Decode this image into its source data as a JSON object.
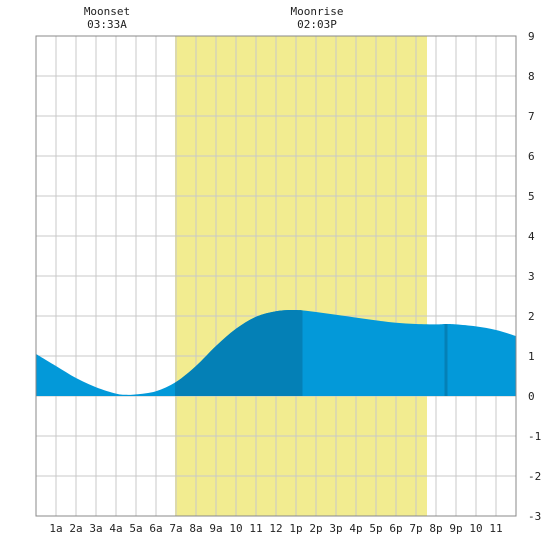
{
  "chart_data": {
    "type": "area",
    "title": "",
    "xlabel": "",
    "ylabel": "",
    "x_tick_labels": [
      "1a",
      "2a",
      "3a",
      "4a",
      "5a",
      "6a",
      "7a",
      "8a",
      "9a",
      "10",
      "11",
      "12",
      "1p",
      "2p",
      "3p",
      "4p",
      "5p",
      "6p",
      "7p",
      "8p",
      "9p",
      "10",
      "11"
    ],
    "y_tick_labels": [
      "-3",
      "-2",
      "-1",
      "0",
      "1",
      "2",
      "3",
      "4",
      "5",
      "6",
      "7",
      "8",
      "9"
    ],
    "xlim": [
      0,
      24
    ],
    "ylim": [
      -3,
      9
    ],
    "grid": true,
    "daylight": {
      "start_hour": 6.95,
      "end_hour": 19.55,
      "color": "#f2ec90"
    },
    "moon_events": [
      {
        "name": "Moonset",
        "time": "03:33A",
        "hour": 3.55
      },
      {
        "name": "Moonrise",
        "time": "02:03P",
        "hour": 14.05
      }
    ],
    "series": [
      {
        "x": [
          0,
          1,
          2,
          3,
          4,
          4.5,
          5,
          6,
          7,
          8,
          9,
          10,
          11,
          12,
          13,
          14,
          15,
          16,
          17,
          18,
          19,
          20,
          20.5,
          21,
          22,
          23,
          24
        ],
        "values": [
          1.05,
          0.75,
          0.45,
          0.22,
          0.06,
          0.03,
          0.04,
          0.12,
          0.35,
          0.75,
          1.25,
          1.68,
          1.98,
          2.12,
          2.15,
          2.1,
          2.03,
          1.96,
          1.89,
          1.83,
          1.8,
          1.79,
          1.8,
          1.79,
          1.74,
          1.65,
          1.5
        ]
      }
    ],
    "markers": [
      {
        "label": "high tide",
        "hour": 13.25
      },
      {
        "label": "high tide",
        "hour": 20.5
      }
    ],
    "colors": {
      "fill": "#0399d9",
      "fill_dark": "#0480b6",
      "grid": "#c8c8c8",
      "frame": "#888888"
    }
  }
}
